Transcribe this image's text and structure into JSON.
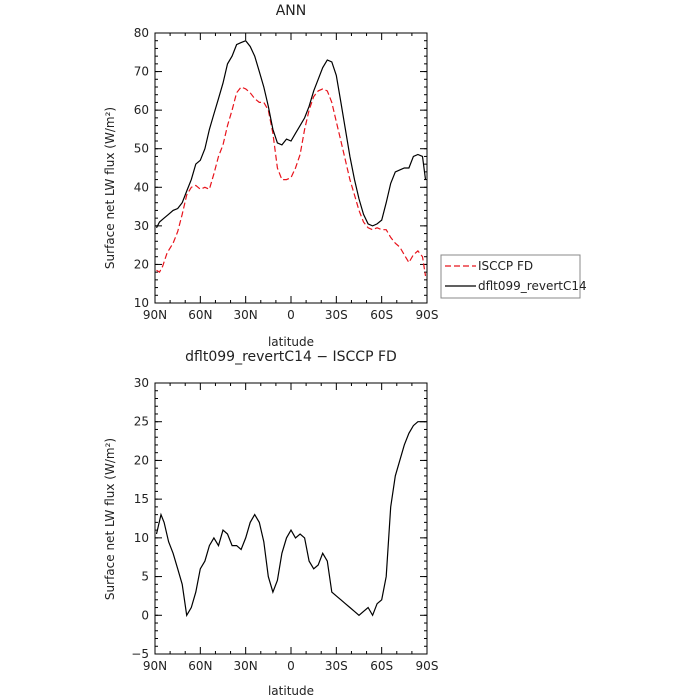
{
  "chart_data": [
    {
      "type": "line",
      "title": "ANN",
      "xlabel": "latitude",
      "ylabel": "Surface net LW flux (W/m²)",
      "xlim": [
        90,
        -90
      ],
      "ylim": [
        10,
        80
      ],
      "x_ticks": [
        90,
        60,
        30,
        0,
        -30,
        -60,
        -90
      ],
      "x_tick_labels": [
        "90N",
        "60N",
        "30N",
        "0",
        "30S",
        "60S",
        "90S"
      ],
      "y_ticks": [
        10,
        20,
        30,
        40,
        50,
        60,
        70,
        80
      ],
      "y_tick_labels": [
        "10",
        "20",
        "30",
        "40",
        "50",
        "60",
        "70",
        "80"
      ],
      "legend_position": "right",
      "series": [
        {
          "name": "ISCCP FD",
          "color": "#e8141c",
          "dash": "dashed",
          "x": [
            89,
            87,
            85,
            82,
            78,
            75,
            72,
            69,
            66,
            63,
            60,
            57,
            54,
            51,
            48,
            45,
            42,
            39,
            36,
            33,
            30,
            27,
            24,
            21,
            18,
            15,
            12,
            9,
            6,
            3,
            0,
            -3,
            -6,
            -9,
            -12,
            -15,
            -18,
            -21,
            -24,
            -27,
            -30,
            -33,
            -36,
            -39,
            -42,
            -45,
            -48,
            -51,
            -54,
            -57,
            -60,
            -63,
            -66,
            -69,
            -72,
            -75,
            -78,
            -81,
            -84,
            -87,
            -89
          ],
          "values": [
            18.5,
            18,
            19.5,
            23,
            25.5,
            28.5,
            33,
            38,
            40,
            40.5,
            39.5,
            40,
            39.5,
            43.5,
            48,
            51,
            56,
            60,
            64.5,
            66,
            65.5,
            64.5,
            63,
            62,
            62,
            60,
            54,
            45,
            42,
            42,
            42.5,
            45,
            48.5,
            55,
            60,
            63.5,
            65,
            65.5,
            65,
            62,
            57,
            52,
            47,
            42,
            38,
            34,
            31,
            29.5,
            29,
            29.5,
            29,
            29,
            27,
            25.5,
            24.5,
            22.5,
            20.5,
            22.5,
            23.5,
            22,
            17
          ]
        },
        {
          "name": "dflt099_revertC14",
          "color": "#000000",
          "dash": "solid",
          "x": [
            89,
            87,
            84,
            81,
            78,
            75,
            72,
            69,
            66,
            63,
            60,
            57,
            54,
            51,
            48,
            45,
            42,
            39,
            36,
            33,
            30,
            27,
            24,
            21,
            18,
            15,
            12,
            9,
            6,
            3,
            0,
            -3,
            -6,
            -9,
            -12,
            -15,
            -18,
            -21,
            -24,
            -27,
            -30,
            -33,
            -36,
            -39,
            -42,
            -45,
            -48,
            -51,
            -54,
            -57,
            -60,
            -63,
            -66,
            -69,
            -72,
            -75,
            -78,
            -81,
            -84,
            -87,
            -89
          ],
          "values": [
            29.5,
            31,
            32,
            33,
            34,
            34.5,
            36,
            39,
            42,
            46,
            47,
            50,
            55,
            59,
            63,
            67,
            72,
            74,
            77,
            77.5,
            78,
            76.5,
            74,
            70,
            66,
            61,
            55,
            51.5,
            51,
            52.5,
            52,
            54,
            56,
            58,
            61,
            65,
            68,
            71,
            73,
            72.5,
            69,
            62,
            55,
            48,
            42,
            37,
            33,
            30.5,
            30,
            30.5,
            31.5,
            36,
            41,
            44,
            44.5,
            45,
            45,
            48,
            48.5,
            48,
            42
          ]
        }
      ]
    },
    {
      "type": "line",
      "title": "dflt099_revertC14 − ISCCP FD",
      "xlabel": "latitude",
      "ylabel": "Surface net LW flux (W/m²)",
      "xlim": [
        90,
        -90
      ],
      "ylim": [
        -5,
        30
      ],
      "x_ticks": [
        90,
        60,
        30,
        0,
        -30,
        -60,
        -90
      ],
      "x_tick_labels": [
        "90N",
        "60N",
        "30N",
        "0",
        "30S",
        "60S",
        "90S"
      ],
      "y_ticks": [
        -5,
        0,
        5,
        10,
        15,
        20,
        25,
        30
      ],
      "y_tick_labels": [
        "−5",
        "0",
        "5",
        "10",
        "15",
        "20",
        "25",
        "30"
      ],
      "series": [
        {
          "color": "#000000",
          "dash": "solid",
          "x": [
            89,
            86,
            84,
            81,
            78,
            75,
            72,
            69,
            66,
            63,
            60,
            57,
            54,
            51,
            48,
            45,
            42,
            39,
            36,
            33,
            30,
            27,
            24,
            21,
            18,
            15,
            12,
            9,
            6,
            3,
            0,
            -3,
            -6,
            -9,
            -12,
            -15,
            -18,
            -21,
            -24,
            -27,
            -30,
            -33,
            -36,
            -39,
            -42,
            -45,
            -48,
            -51,
            -54,
            -57,
            -60,
            -63,
            -66,
            -69,
            -72,
            -75,
            -78,
            -81,
            -84,
            -87,
            -89
          ],
          "values": [
            10.5,
            13,
            12,
            9.5,
            8,
            6,
            4,
            0,
            1,
            3,
            6,
            7,
            9,
            10,
            9,
            11,
            10.5,
            9,
            9,
            8.5,
            10,
            12,
            13,
            12,
            9.5,
            5,
            3,
            4.5,
            8,
            10,
            11,
            10,
            10.5,
            10,
            7,
            6,
            6.5,
            8,
            7,
            3,
            2.5,
            2,
            1.5,
            1,
            0.5,
            0,
            0.5,
            1,
            0,
            1.5,
            2,
            5,
            14,
            18,
            20,
            22,
            23.5,
            24.5,
            25,
            25,
            25
          ]
        }
      ]
    }
  ]
}
